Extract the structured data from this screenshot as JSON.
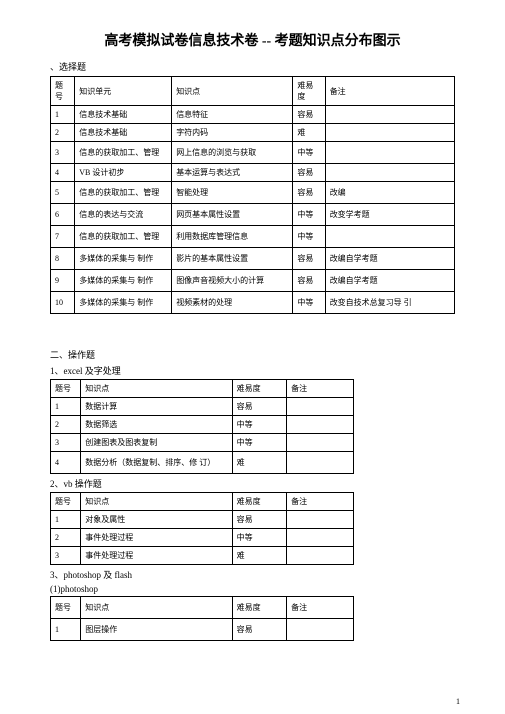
{
  "title": "高考模拟试卷信息技术卷 -- 考题知识点分布图示",
  "section1": {
    "label": "、选择题"
  },
  "table1": {
    "headers": [
      "题号",
      "知识单元",
      "知识点",
      "难易度",
      "备注"
    ],
    "rows": [
      {
        "num": "1",
        "unit": "信息技术基础",
        "point": "信息特征",
        "level": "容易",
        "note": ""
      },
      {
        "num": "2",
        "unit": "信息技术基础",
        "point": "字符内码",
        "level": "难",
        "note": ""
      },
      {
        "num": "3",
        "unit": "信息的获取加工、管理",
        "point": "网上信息的浏览与获取",
        "level": "中等",
        "note": ""
      },
      {
        "num": "4",
        "unit": "VB 设计初步",
        "point": "基本运算与表达式",
        "level": "容易",
        "note": ""
      },
      {
        "num": "5",
        "unit": "信息的获取加工、管理",
        "point": "智能处理",
        "level": "容易",
        "note": "改编"
      },
      {
        "num": "6",
        "unit": "信息的表达与交流",
        "point": "网页基本属性设置",
        "level": "中等",
        "note": "改变学考题"
      },
      {
        "num": "7",
        "unit": "信息的获取加工、管理",
        "point": "利用数据库管理信息",
        "level": "中等",
        "note": ""
      },
      {
        "num": "8",
        "unit": "多媒体的采集与 制作",
        "point": "影片的基本属性设置",
        "level": "容易",
        "note": "改编自学考题"
      },
      {
        "num": "9",
        "unit": "多媒体的采集与 制作",
        "point": "图像声音视频大小的计算",
        "level": "容易",
        "note": "改编自学考题"
      },
      {
        "num": "10",
        "unit": "多媒体的采集与 制作",
        "point": "视频素材的处理",
        "level": "中等",
        "note": "改变自技术总复习导 引"
      }
    ]
  },
  "section2": {
    "label": "二、操作题"
  },
  "sub1": {
    "label": "1、excel 及字处理"
  },
  "table2a": {
    "headers": [
      "题号",
      "知识点",
      "难易度",
      "备注"
    ],
    "rows": [
      {
        "num": "1",
        "point": "数据计算",
        "level": "容易",
        "note": ""
      },
      {
        "num": "2",
        "point": "数据筛选",
        "level": "中等",
        "note": ""
      },
      {
        "num": "3",
        "point": "创建图表及图表复制",
        "level": "中等",
        "note": ""
      },
      {
        "num": "4",
        "point": "数据分析（数据复制、排序、修 订）",
        "level": "难",
        "note": ""
      }
    ]
  },
  "sub2": {
    "label": "2、vb 操作题"
  },
  "table2b": {
    "headers": [
      "题号",
      "知识点",
      "难易度",
      "备注"
    ],
    "rows": [
      {
        "num": "1",
        "point": "对象及属性",
        "level": "容易",
        "note": ""
      },
      {
        "num": "2",
        "point": "事件处理过程",
        "level": "中等",
        "note": ""
      },
      {
        "num": "3",
        "point": "事件处理过程",
        "level": "难",
        "note": ""
      }
    ]
  },
  "sub3": {
    "label": "3、photoshop 及 flash"
  },
  "sub3a": {
    "label": "(1)photoshop"
  },
  "table2c": {
    "headers": [
      "题号",
      "知识点",
      "难易度",
      "备注"
    ],
    "rows": [
      {
        "num": "1",
        "point": "图层操作",
        "level": "容易",
        "note": ""
      }
    ]
  },
  "pageNum": "1"
}
